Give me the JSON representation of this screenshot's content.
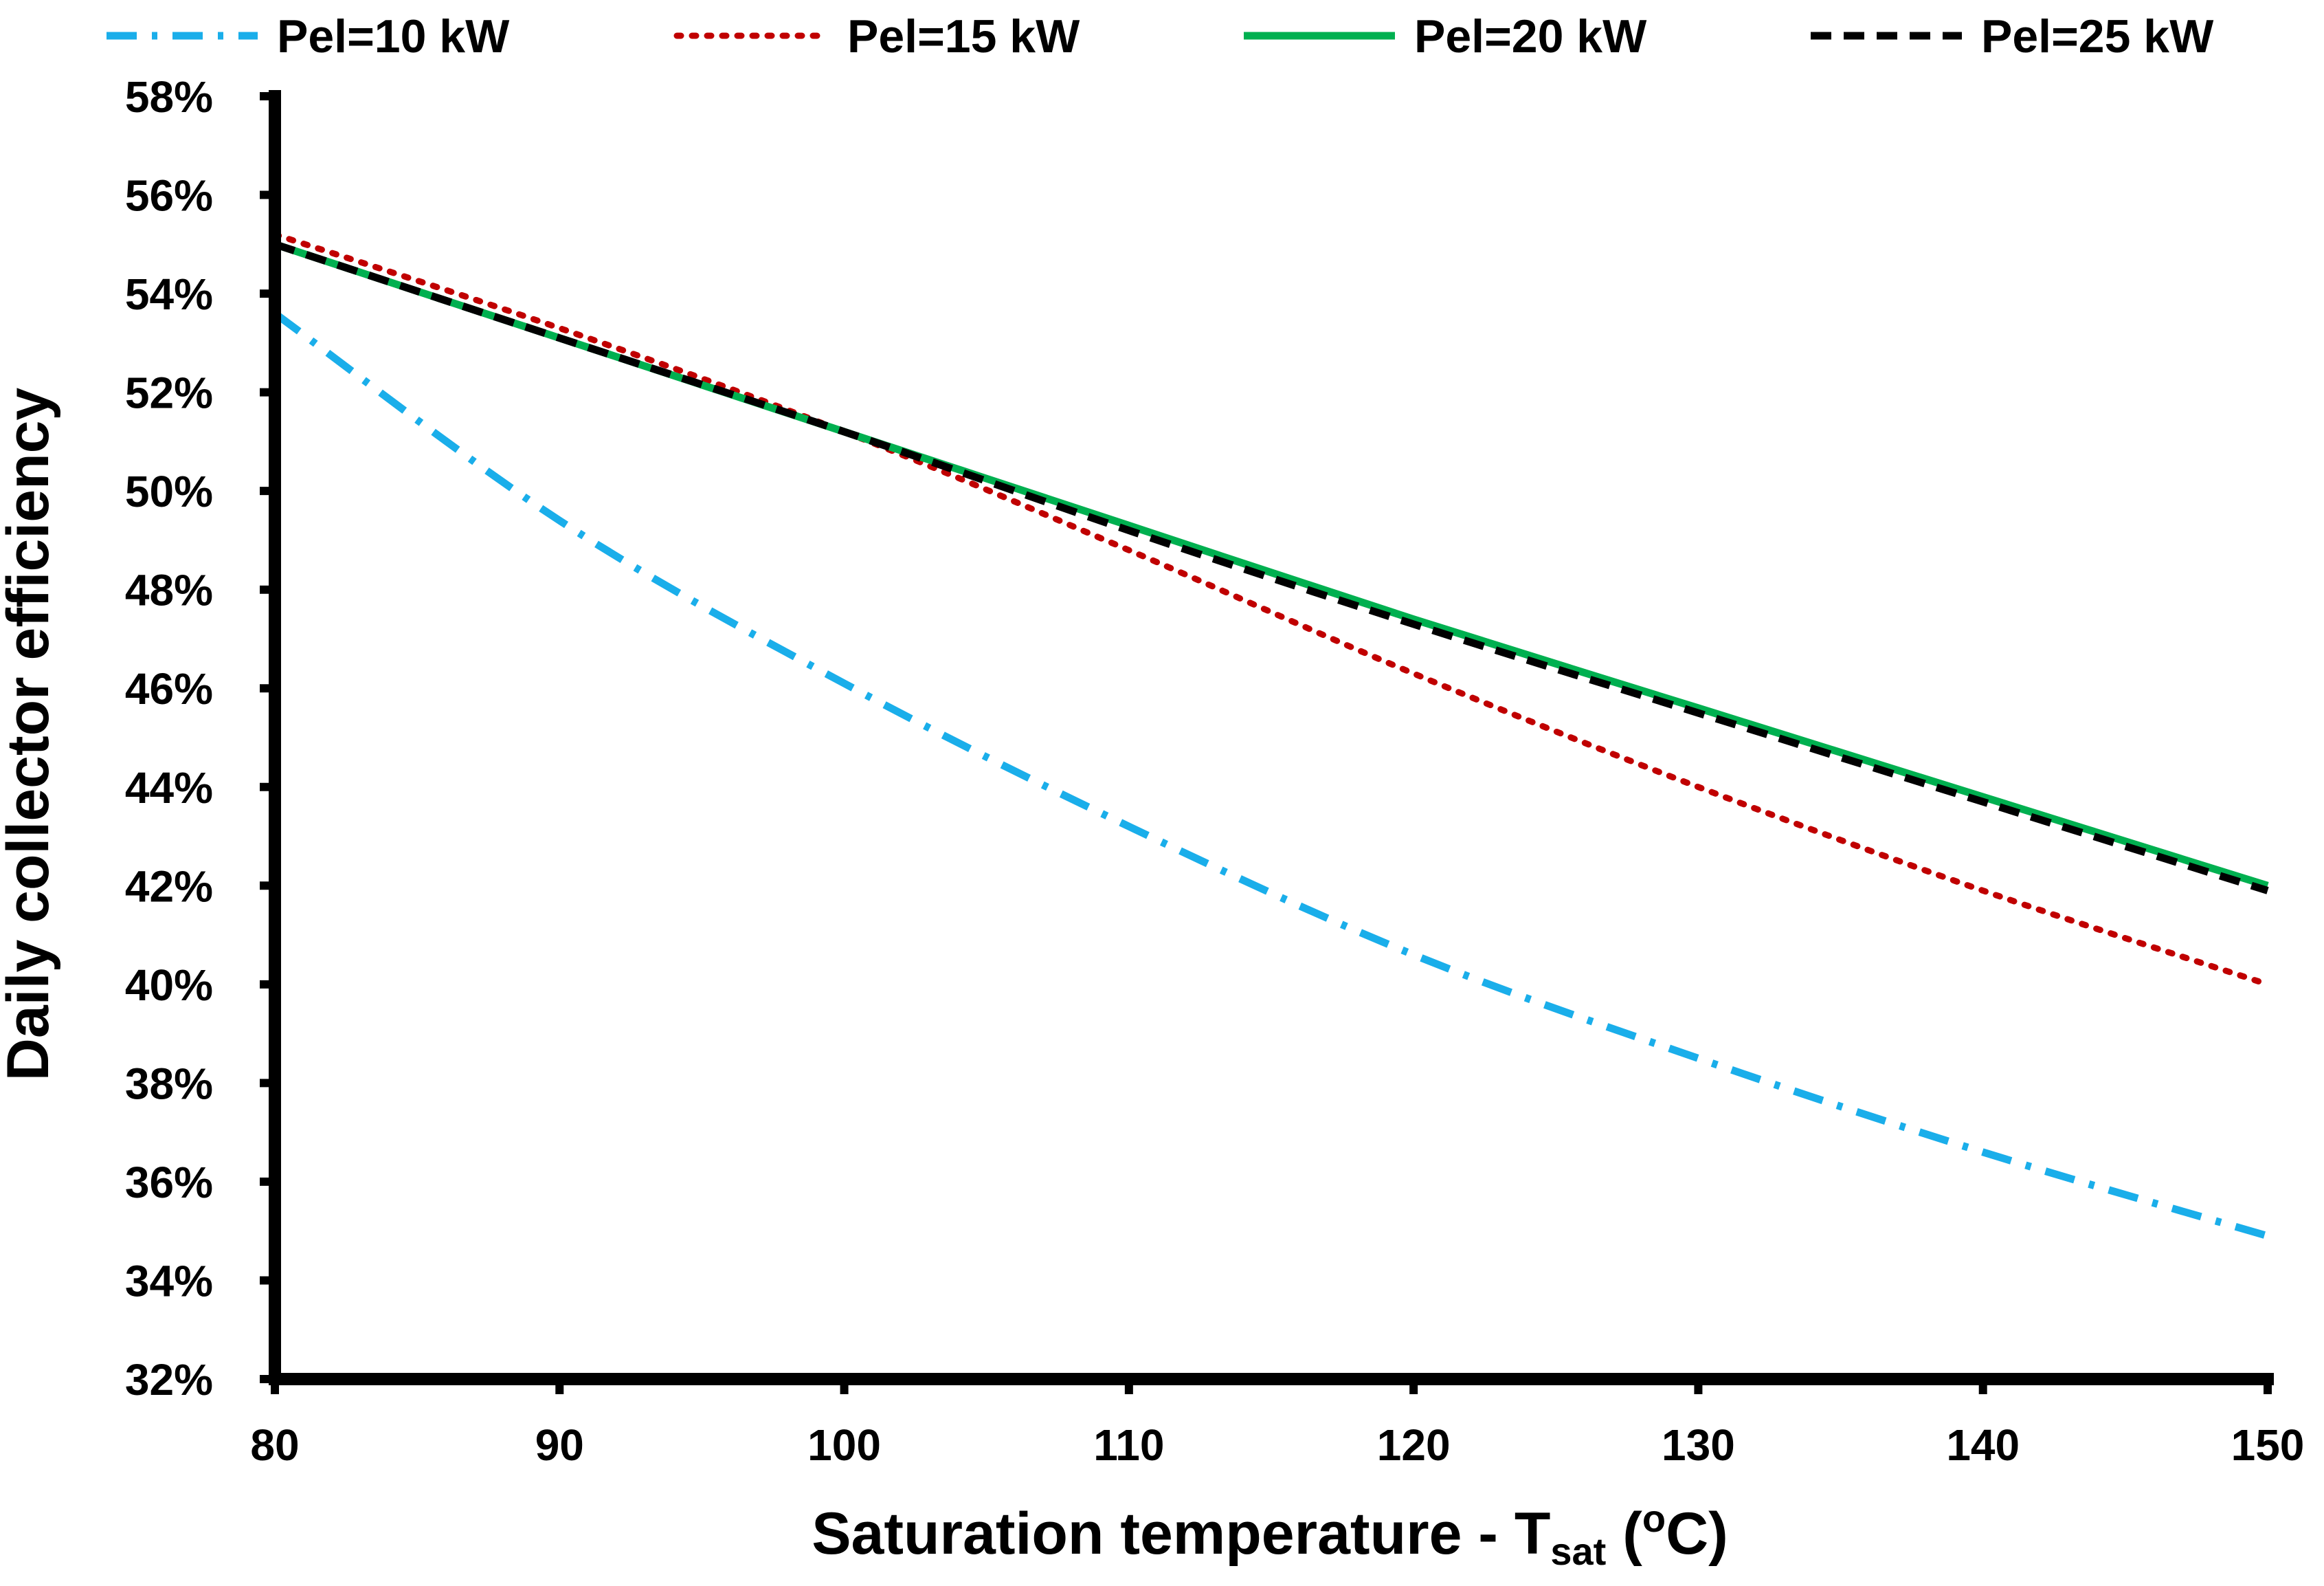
{
  "chart_data": {
    "type": "line",
    "xlabel": "Saturation temperature - T",
    "xlabel_sub": "sat",
    "xlabel_open": " (",
    "xlabel_sup": "o",
    "xlabel_unit": "C)",
    "ylabel": "Daily collector efficiency",
    "xlim": [
      80,
      150
    ],
    "ylim": [
      32,
      58
    ],
    "x_ticks": [
      80,
      90,
      100,
      110,
      120,
      130,
      140,
      150
    ],
    "x_tick_labels": [
      "80",
      "90",
      "100",
      "110",
      "120",
      "130",
      "140",
      "150"
    ],
    "y_ticks": [
      32,
      34,
      36,
      38,
      40,
      42,
      44,
      46,
      48,
      50,
      52,
      54,
      56,
      58
    ],
    "y_tick_labels": [
      "32%",
      "34%",
      "36%",
      "38%",
      "40%",
      "42%",
      "44%",
      "46%",
      "48%",
      "50%",
      "52%",
      "54%",
      "56%",
      "58%"
    ],
    "grid": false,
    "legend_position": "top",
    "x": [
      80,
      90,
      100,
      110,
      120,
      130,
      140,
      150
    ],
    "series": [
      {
        "name": "Pel=10 kW",
        "color": "#1AAEEA",
        "dash": "dashdot",
        "values": [
          53.6,
          49.4,
          46.1,
          43.2,
          40.6,
          38.5,
          36.6,
          34.9
        ]
      },
      {
        "name": "Pel=15 kW",
        "color": "#C00000",
        "dash": "dot",
        "values": [
          55.2,
          53.3,
          51.2,
          48.8,
          46.3,
          44.0,
          41.9,
          40.0
        ]
      },
      {
        "name": "Pel=20 kW",
        "color": "#00B050",
        "dash": "solid",
        "values": [
          55.0,
          53.1,
          51.2,
          49.3,
          47.4,
          45.6,
          43.8,
          42.0
        ]
      },
      {
        "name": "Pel=25 kW",
        "color": "#000000",
        "dash": "dash",
        "values": [
          55.0,
          53.1,
          51.2,
          49.2,
          47.3,
          45.5,
          43.7,
          41.9
        ]
      }
    ]
  }
}
